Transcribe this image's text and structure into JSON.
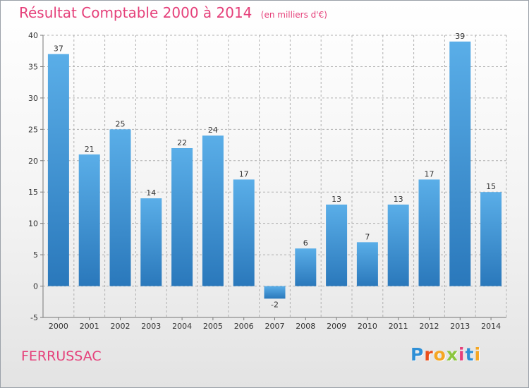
{
  "header": {
    "title": "Résultat Comptable 2000 à 2014",
    "unit": "(en milliers d'€)"
  },
  "footer": {
    "commune": "FERRUSSAC",
    "brand_letters": [
      "P",
      "r",
      "o",
      "x",
      "i",
      "t",
      "i"
    ],
    "brand_colors": [
      "#2e8fd6",
      "#e94e1b",
      "#f5a623",
      "#8cc63f",
      "#e5407a",
      "#2e8fd6",
      "#f5a623"
    ]
  },
  "colors": {
    "title": "#e5407a",
    "bar_top": "#5aaee8",
    "bar_bottom": "#2a78bb",
    "grid": "#b0b0b0",
    "axis": "#777777",
    "label": "#333333"
  },
  "chart_data": {
    "type": "bar",
    "title": "Résultat Comptable 2000 à 2014",
    "subtitle": "(en milliers d'€)",
    "categories": [
      "2000",
      "2001",
      "2002",
      "2003",
      "2004",
      "2005",
      "2006",
      "2007",
      "2008",
      "2009",
      "2010",
      "2011",
      "2012",
      "2013",
      "2014"
    ],
    "values": [
      37,
      21,
      25,
      14,
      22,
      24,
      17,
      -2,
      6,
      13,
      7,
      13,
      17,
      39,
      15
    ],
    "ylim": [
      -5,
      40
    ],
    "yticks": [
      -5,
      0,
      5,
      10,
      15,
      20,
      25,
      30,
      35,
      40
    ],
    "xlabel": "",
    "ylabel": "",
    "grid": true,
    "legend": "none"
  }
}
